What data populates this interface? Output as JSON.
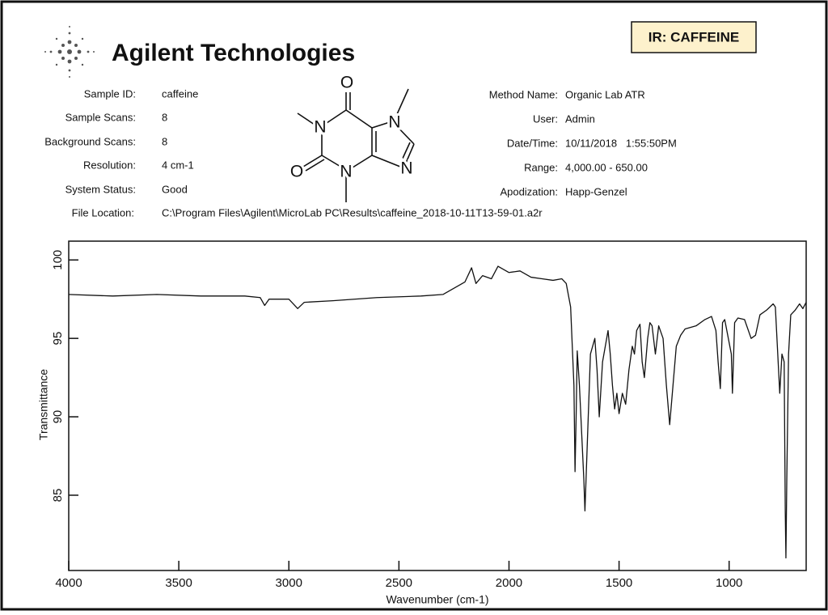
{
  "header": {
    "brand": "Agilent Technologies",
    "badge": "IR: CAFFEINE"
  },
  "sample_info": [
    {
      "label": "Sample ID:",
      "value": "caffeine"
    },
    {
      "label": "Sample Scans:",
      "value": "8"
    },
    {
      "label": "Background Scans:",
      "value": "8"
    },
    {
      "label": "Resolution:",
      "value": "4 cm-1"
    },
    {
      "label": "System Status:",
      "value": "Good"
    }
  ],
  "file_location": {
    "label": "File Location:",
    "value": "C:\\Program Files\\Agilent\\MicroLab PC\\Results\\caffeine_2018-10-11T13-59-01.a2r"
  },
  "method_info": [
    {
      "label": "Method Name:",
      "value": "Organic Lab ATR"
    },
    {
      "label": "User:",
      "value": "Admin"
    },
    {
      "label": "Date/Time:",
      "value": "10/11/2018   1:55:50PM"
    },
    {
      "label": "Range:",
      "value": "4,000.00 - 650.00"
    },
    {
      "label": "Apodization:",
      "value": "Happ-Genzel"
    }
  ],
  "structure": {
    "atoms": [
      "O",
      "N",
      "N",
      "N",
      "N",
      "O"
    ]
  },
  "chart_data": {
    "type": "line",
    "xlabel": "Wavenumber (cm-1)",
    "ylabel": "Transmittance",
    "color": "#111111",
    "xlim": [
      4000,
      650
    ],
    "ylim": [
      80.2,
      101.2
    ],
    "xticks": [
      4000,
      3500,
      3000,
      2500,
      2000,
      1500,
      1000
    ],
    "yticks": [
      85,
      90,
      95,
      100
    ],
    "x": [
      4000,
      3800,
      3600,
      3400,
      3200,
      3130,
      3110,
      3090,
      3000,
      2960,
      2930,
      2800,
      2600,
      2400,
      2300,
      2250,
      2200,
      2170,
      2150,
      2120,
      2080,
      2050,
      2000,
      1950,
      1900,
      1850,
      1800,
      1760,
      1740,
      1720,
      1705,
      1700,
      1695,
      1690,
      1680,
      1660,
      1655,
      1645,
      1630,
      1610,
      1600,
      1590,
      1575,
      1550,
      1540,
      1530,
      1520,
      1510,
      1500,
      1485,
      1470,
      1455,
      1440,
      1430,
      1420,
      1405,
      1395,
      1385,
      1370,
      1360,
      1350,
      1335,
      1320,
      1300,
      1285,
      1270,
      1255,
      1240,
      1220,
      1200,
      1150,
      1110,
      1080,
      1060,
      1050,
      1040,
      1030,
      1020,
      990,
      985,
      975,
      960,
      930,
      900,
      880,
      860,
      830,
      800,
      790,
      770,
      760,
      750,
      745,
      742,
      738,
      730,
      720,
      700,
      680,
      665,
      650
    ],
    "values": [
      97.8,
      97.7,
      97.8,
      97.7,
      97.7,
      97.6,
      97.1,
      97.5,
      97.5,
      96.9,
      97.3,
      97.4,
      97.6,
      97.7,
      97.8,
      98.2,
      98.6,
      99.5,
      98.5,
      99.0,
      98.8,
      99.6,
      99.2,
      99.3,
      98.9,
      98.8,
      98.7,
      98.8,
      98.5,
      97.0,
      92,
      86.5,
      90,
      94.2,
      92,
      86,
      84,
      88,
      94,
      95,
      93,
      90,
      93.5,
      95.5,
      94,
      92,
      90.5,
      91.5,
      90.2,
      91.5,
      90.8,
      93,
      94.5,
      94,
      95.5,
      95.9,
      93.5,
      92.5,
      95,
      96,
      95.8,
      94,
      95.8,
      95,
      92,
      89.5,
      92,
      94.5,
      95.2,
      95.6,
      95.8,
      96.2,
      96.4,
      95.5,
      93.5,
      91.8,
      96,
      96.2,
      94,
      91.5,
      96,
      96.3,
      96.2,
      95,
      95.2,
      96.5,
      96.8,
      97.2,
      97.0,
      91.5,
      94,
      93.5,
      84,
      81,
      86,
      94,
      96.5,
      96.8,
      97.2,
      96.9,
      97.3
    ]
  }
}
